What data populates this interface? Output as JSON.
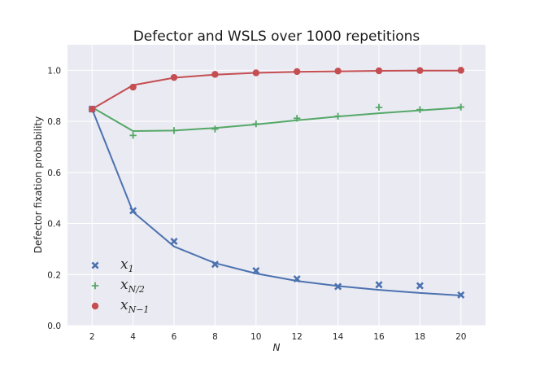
{
  "chart_data": {
    "type": "line",
    "title": "Defector and WSLS over 1000 repetitions",
    "xlabel": "N",
    "ylabel": "Defector fixation probability",
    "xlim": [
      0.8,
      21.2
    ],
    "ylim": [
      0.0,
      1.1
    ],
    "xticks": [
      2,
      4,
      6,
      8,
      10,
      12,
      14,
      16,
      18,
      20
    ],
    "yticks": [
      0.0,
      0.2,
      0.4,
      0.6,
      0.8,
      1.0
    ],
    "ytick_labels": [
      "0.0",
      "0.2",
      "0.4",
      "0.6",
      "0.8",
      "1.0"
    ],
    "grid": true,
    "legend_position": "lower-left",
    "series": [
      {
        "name": "x_1",
        "legend_main": "x",
        "legend_sub": "1",
        "color": "#4c72b0",
        "marker": "x",
        "x": [
          2,
          4,
          6,
          8,
          10,
          12,
          14,
          16,
          18,
          20
        ],
        "line": [
          0.848,
          0.445,
          0.31,
          0.245,
          0.204,
          0.175,
          0.155,
          0.14,
          0.128,
          0.118
        ],
        "points": [
          0.848,
          0.45,
          0.33,
          0.24,
          0.215,
          0.183,
          0.153,
          0.16,
          0.156,
          0.12
        ]
      },
      {
        "name": "x_N/2",
        "legend_main": "x",
        "legend_sub": "N/2",
        "color": "#55a868",
        "marker": "+",
        "x": [
          2,
          4,
          6,
          8,
          10,
          12,
          14,
          16,
          18,
          20
        ],
        "line": [
          0.855,
          0.762,
          0.764,
          0.774,
          0.788,
          0.804,
          0.819,
          0.832,
          0.843,
          0.854
        ],
        "points": [
          0.848,
          0.745,
          0.764,
          0.77,
          0.79,
          0.812,
          0.82,
          0.855,
          0.846,
          0.856
        ]
      },
      {
        "name": "x_N-1",
        "legend_main": "x",
        "legend_sub": "N−1",
        "color": "#c44e52",
        "marker": "o",
        "x": [
          2,
          4,
          6,
          8,
          10,
          12,
          14,
          16,
          18,
          20
        ],
        "line": [
          0.848,
          0.942,
          0.971,
          0.983,
          0.99,
          0.994,
          0.996,
          0.998,
          0.999,
          0.999
        ],
        "points": [
          0.848,
          0.934,
          0.972,
          0.984,
          0.99,
          0.995,
          0.997,
          0.998,
          0.999,
          1.0
        ]
      }
    ]
  }
}
